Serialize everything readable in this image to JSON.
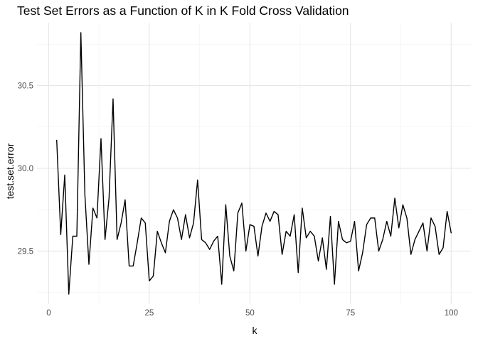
{
  "chart_data": {
    "type": "line",
    "title": "Test Set Errors as a Function of K in K Fold Cross Validation",
    "xlabel": "k",
    "ylabel": "test.set.error",
    "xlim": [
      -2.9,
      104.9
    ],
    "ylim": [
      29.18,
      30.88
    ],
    "x_ticks": [
      0,
      25,
      50,
      75,
      100
    ],
    "x_minor_ticks": [
      12.5,
      37.5,
      62.5,
      87.5
    ],
    "y_ticks": [
      29.5,
      30.0,
      30.5
    ],
    "y_minor_ticks": [
      29.25,
      29.75,
      30.25,
      30.75
    ],
    "grid": true,
    "legend": "none",
    "line_color": "#000000",
    "series": [
      {
        "x": [
          2,
          3,
          4,
          5,
          6,
          7,
          8,
          9,
          10,
          11,
          12,
          13,
          14,
          15,
          16,
          17,
          18,
          19,
          20,
          21,
          22,
          23,
          24,
          25,
          26,
          27,
          28,
          29,
          30,
          31,
          32,
          33,
          34,
          35,
          36,
          37,
          38,
          39,
          40,
          41,
          42,
          43,
          44,
          45,
          46,
          47,
          48,
          49,
          50,
          51,
          52,
          53,
          54,
          55,
          56,
          57,
          58,
          59,
          60,
          61,
          62,
          63,
          64,
          65,
          66,
          67,
          68,
          69,
          70,
          71,
          72,
          73,
          74,
          75,
          76,
          77,
          78,
          79,
          80,
          81,
          82,
          83,
          84,
          85,
          86,
          87,
          88,
          89,
          90,
          91,
          92,
          93,
          94,
          95,
          96,
          97,
          98,
          99,
          100
        ],
        "values": [
          30.17,
          29.6,
          29.96,
          29.24,
          29.59,
          29.59,
          30.82,
          29.84,
          29.42,
          29.76,
          29.7,
          30.18,
          29.57,
          29.82,
          30.42,
          29.57,
          29.67,
          29.81,
          29.41,
          29.41,
          29.55,
          29.7,
          29.67,
          29.32,
          29.35,
          29.62,
          29.55,
          29.49,
          29.68,
          29.75,
          29.7,
          29.57,
          29.72,
          29.58,
          29.67,
          29.93,
          29.57,
          29.55,
          29.51,
          29.56,
          29.59,
          29.3,
          29.78,
          29.47,
          29.38,
          29.73,
          29.79,
          29.5,
          29.66,
          29.65,
          29.47,
          29.65,
          29.73,
          29.68,
          29.74,
          29.72,
          29.48,
          29.62,
          29.59,
          29.72,
          29.37,
          29.76,
          29.58,
          29.62,
          29.59,
          29.44,
          29.58,
          29.39,
          29.71,
          29.3,
          29.68,
          29.57,
          29.55,
          29.56,
          29.68,
          29.38,
          29.49,
          29.66,
          29.7,
          29.7,
          29.5,
          29.57,
          29.68,
          29.59,
          29.82,
          29.64,
          29.78,
          29.7,
          29.48,
          29.57,
          29.62,
          29.67,
          29.5,
          29.7,
          29.65,
          29.48,
          29.52,
          29.74,
          29.61
        ]
      }
    ]
  }
}
